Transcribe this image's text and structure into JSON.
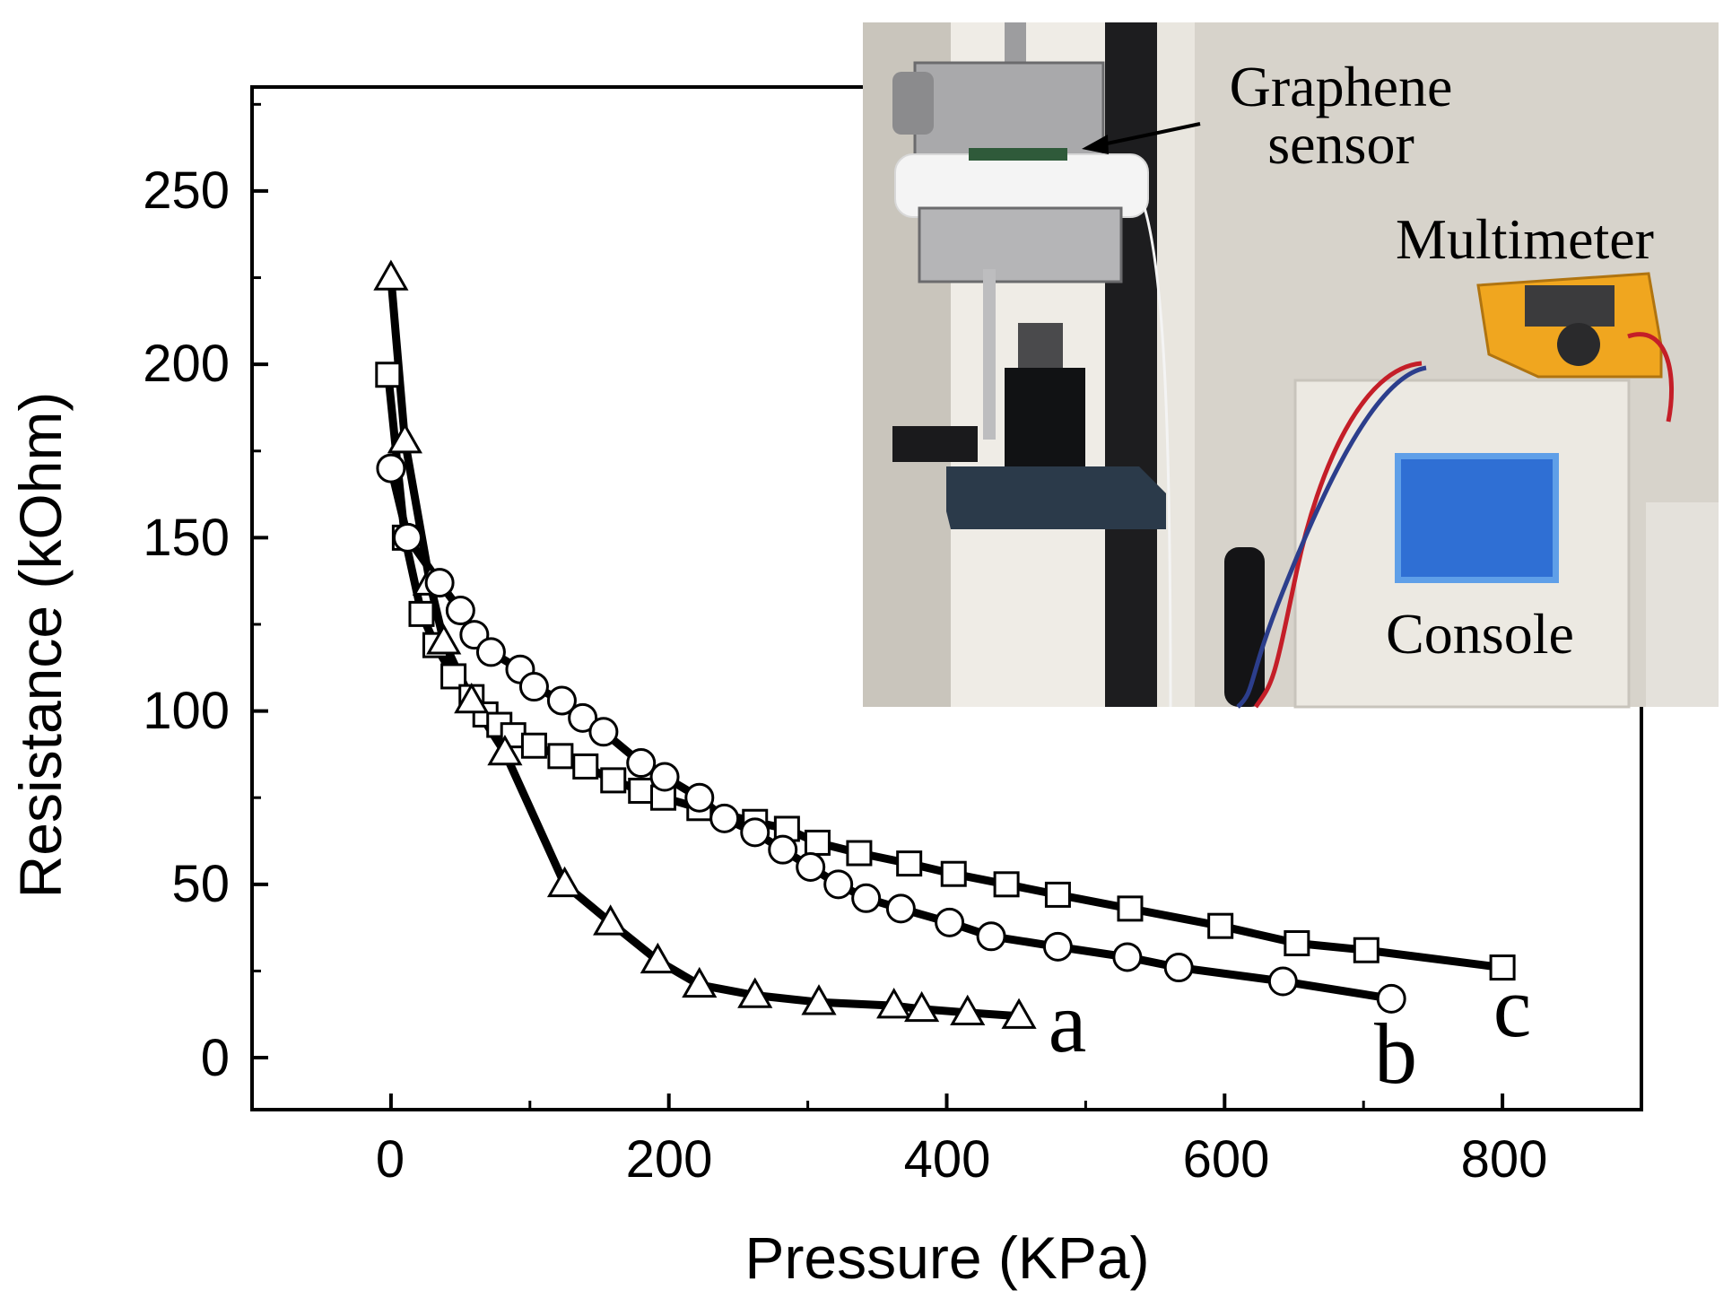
{
  "chart_data": {
    "type": "line",
    "xlabel": "Pressure (KPa)",
    "ylabel": "Resistance (kOhm)",
    "xlim": [
      -100,
      900
    ],
    "ylim": [
      -15,
      280
    ],
    "xticks": [
      0,
      200,
      400,
      600,
      800
    ],
    "yticks": [
      0,
      50,
      100,
      150,
      200,
      250
    ],
    "grid": false,
    "series": [
      {
        "name": "a",
        "marker": "triangle",
        "x": [
          0,
          10,
          28,
          38,
          58,
          82,
          125,
          158,
          192,
          222,
          262,
          308,
          362,
          382,
          415,
          452
        ],
        "y": [
          225,
          178,
          137,
          120,
          103,
          88,
          50,
          39,
          28,
          21,
          18,
          16,
          15,
          14,
          13,
          12
        ]
      },
      {
        "name": "b",
        "marker": "circle",
        "x": [
          0,
          12,
          35,
          50,
          60,
          72,
          93,
          103,
          123,
          138,
          153,
          180,
          197,
          222,
          240,
          262,
          282,
          302,
          322,
          342,
          367,
          402,
          432,
          480,
          530,
          567,
          642,
          720
        ],
        "y": [
          170,
          150,
          137,
          129,
          122,
          117,
          112,
          107,
          103,
          98,
          94,
          85,
          81,
          75,
          69,
          65,
          60,
          55,
          50,
          46,
          43,
          39,
          35,
          32,
          29,
          26,
          22,
          17
        ]
      },
      {
        "name": "c",
        "marker": "square",
        "x": [
          -2,
          10,
          22,
          32,
          45,
          58,
          68,
          78,
          88,
          103,
          122,
          140,
          160,
          180,
          196,
          222,
          262,
          285,
          307,
          337,
          373,
          405,
          443,
          480,
          532,
          597,
          652,
          702,
          800
        ],
        "y": [
          197,
          150,
          128,
          119,
          110,
          104,
          99,
          96,
          93,
          90,
          87,
          84,
          80,
          77,
          75,
          72,
          68,
          66,
          62,
          59,
          56,
          53,
          50,
          47,
          43,
          38,
          33,
          31,
          26
        ]
      }
    ]
  },
  "inset": {
    "labels": {
      "graphene": "Graphene",
      "sensor": "sensor",
      "multimeter": "Multimeter",
      "console": "Console"
    },
    "colors": {
      "wall": "#c9c5bc",
      "column": "#1d1d1f",
      "multimeter_body": "#f0a61f",
      "console_panel": "#ece9e2",
      "screen_frame": "#5f9fe8",
      "screen": "#2f6fd4",
      "wire_red": "#c41e28",
      "wire_blue": "#2c3e8c",
      "foam": "#f4f4f4"
    }
  }
}
